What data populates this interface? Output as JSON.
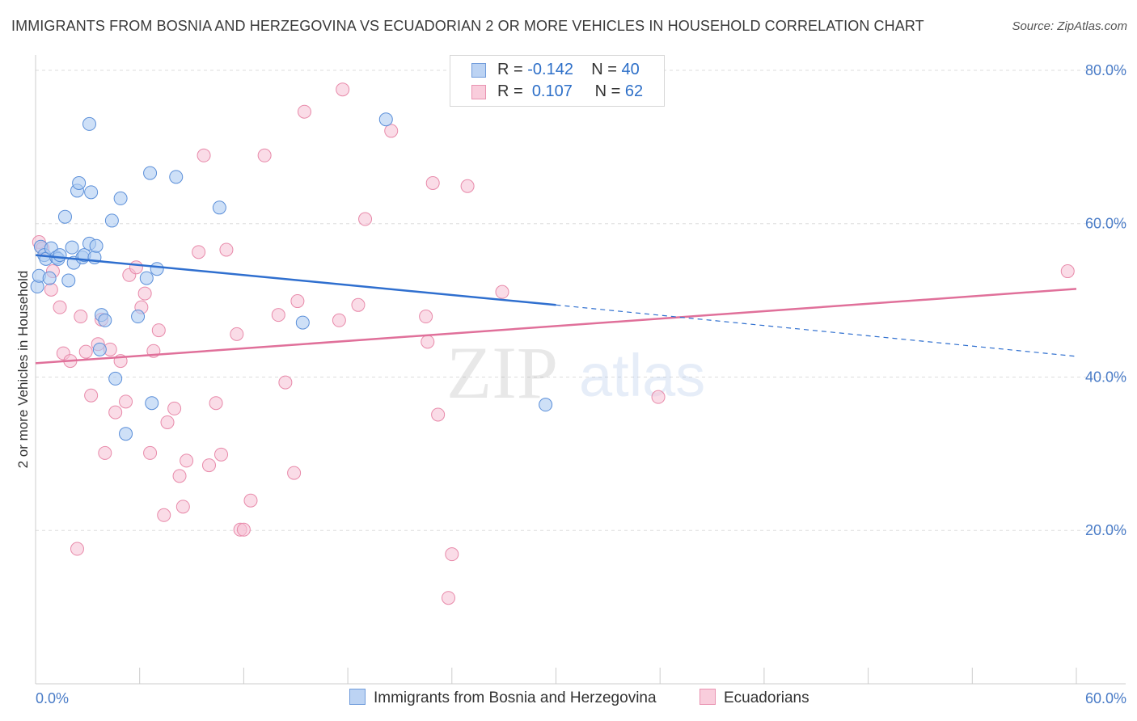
{
  "title": "IMMIGRANTS FROM BOSNIA AND HERZEGOVINA VS ECUADORIAN 2 OR MORE VEHICLES IN HOUSEHOLD CORRELATION CHART",
  "source": "Source: ZipAtlas.com",
  "watermark": {
    "zip": "ZIP",
    "atlas": "atlas"
  },
  "legend": {
    "series1": {
      "r_label": "R =",
      "r_value": "-0.142",
      "n_label": "N =",
      "n_value": "40"
    },
    "series2": {
      "r_label": "R =",
      "r_value": "0.107",
      "n_label": "N =",
      "n_value": "62"
    }
  },
  "bottom_legend": {
    "series1": "Immigrants from Bosnia and Herzegovina",
    "series2": "Ecuadorians"
  },
  "colors": {
    "series1_fill": "#aecbf2",
    "series1_stroke": "#5b8fd9",
    "series1_line": "#2f6fcf",
    "series2_fill": "#f6c0d3",
    "series2_stroke": "#e88aaa",
    "series2_line": "#e0709a",
    "axis_text": "#4a7cc7",
    "grid": "#dddddd"
  },
  "chart_data": {
    "type": "scatter",
    "title": "IMMIGRANTS FROM BOSNIA AND HERZEGOVINA VS ECUADORIAN 2 OR MORE VEHICLES IN HOUSEHOLD CORRELATION CHART",
    "xlabel": "",
    "ylabel": "2 or more Vehicles in Household",
    "xlim": [
      0,
      60
    ],
    "ylim": [
      0,
      82
    ],
    "x_tick_labels": [
      "0.0%",
      "60.0%"
    ],
    "y_ticks": [
      20,
      40,
      60,
      80
    ],
    "y_tick_labels": [
      "20.0%",
      "40.0%",
      "60.0%",
      "80.0%"
    ],
    "grid": true,
    "legend_position": "top-center",
    "series": [
      {
        "name": "Immigrants from Bosnia and Herzegovina",
        "points": [
          [
            0.1,
            51.8
          ],
          [
            0.2,
            53.2
          ],
          [
            0.3,
            57.0
          ],
          [
            0.5,
            55.9
          ],
          [
            0.6,
            55.4
          ],
          [
            0.8,
            52.9
          ],
          [
            0.9,
            56.8
          ],
          [
            1.2,
            55.6
          ],
          [
            1.3,
            55.4
          ],
          [
            1.4,
            55.9
          ],
          [
            1.7,
            60.9
          ],
          [
            1.9,
            52.6
          ],
          [
            2.1,
            56.9
          ],
          [
            2.2,
            54.9
          ],
          [
            2.4,
            64.3
          ],
          [
            2.5,
            65.3
          ],
          [
            2.7,
            55.6
          ],
          [
            2.8,
            55.9
          ],
          [
            3.1,
            57.4
          ],
          [
            3.1,
            73.0
          ],
          [
            3.2,
            64.1
          ],
          [
            3.4,
            55.6
          ],
          [
            3.5,
            57.1
          ],
          [
            3.7,
            43.6
          ],
          [
            3.8,
            48.1
          ],
          [
            4.0,
            47.4
          ],
          [
            4.4,
            60.4
          ],
          [
            4.6,
            39.8
          ],
          [
            4.9,
            63.3
          ],
          [
            5.2,
            32.6
          ],
          [
            5.9,
            47.9
          ],
          [
            6.4,
            52.9
          ],
          [
            6.6,
            66.6
          ],
          [
            6.7,
            36.6
          ],
          [
            7.0,
            54.1
          ],
          [
            8.1,
            66.1
          ],
          [
            10.6,
            62.1
          ],
          [
            15.4,
            47.1
          ],
          [
            20.2,
            73.6
          ],
          [
            29.4,
            36.4
          ]
        ]
      },
      {
        "name": "Ecuadorians",
        "points": [
          [
            0.2,
            57.6
          ],
          [
            0.4,
            56.8
          ],
          [
            0.9,
            51.4
          ],
          [
            1.0,
            53.8
          ],
          [
            1.4,
            49.1
          ],
          [
            1.6,
            43.1
          ],
          [
            2.0,
            42.1
          ],
          [
            2.4,
            17.6
          ],
          [
            2.6,
            47.9
          ],
          [
            2.9,
            43.3
          ],
          [
            3.2,
            37.6
          ],
          [
            3.6,
            44.3
          ],
          [
            3.8,
            47.5
          ],
          [
            4.0,
            30.1
          ],
          [
            4.3,
            43.6
          ],
          [
            4.6,
            35.4
          ],
          [
            4.9,
            42.1
          ],
          [
            5.2,
            36.8
          ],
          [
            5.4,
            53.3
          ],
          [
            5.8,
            54.3
          ],
          [
            6.1,
            49.1
          ],
          [
            6.3,
            50.9
          ],
          [
            6.6,
            30.1
          ],
          [
            6.8,
            43.4
          ],
          [
            7.1,
            46.1
          ],
          [
            7.4,
            22.0
          ],
          [
            7.6,
            34.1
          ],
          [
            8.0,
            35.9
          ],
          [
            8.3,
            27.1
          ],
          [
            8.5,
            23.1
          ],
          [
            8.7,
            29.1
          ],
          [
            9.4,
            56.3
          ],
          [
            9.7,
            68.9
          ],
          [
            10.0,
            28.5
          ],
          [
            10.4,
            36.6
          ],
          [
            10.7,
            29.9
          ],
          [
            11.0,
            56.6
          ],
          [
            11.6,
            45.6
          ],
          [
            11.8,
            20.1
          ],
          [
            12.0,
            20.1
          ],
          [
            12.4,
            23.9
          ],
          [
            13.2,
            68.9
          ],
          [
            14.0,
            48.1
          ],
          [
            14.4,
            39.3
          ],
          [
            14.9,
            27.5
          ],
          [
            15.1,
            49.9
          ],
          [
            15.5,
            74.6
          ],
          [
            17.5,
            47.4
          ],
          [
            17.7,
            77.5
          ],
          [
            18.6,
            49.4
          ],
          [
            19.0,
            60.6
          ],
          [
            20.5,
            72.1
          ],
          [
            22.5,
            47.9
          ],
          [
            22.6,
            44.6
          ],
          [
            22.9,
            65.3
          ],
          [
            23.2,
            35.1
          ],
          [
            24.0,
            16.9
          ],
          [
            23.8,
            11.2
          ],
          [
            24.9,
            64.9
          ],
          [
            26.9,
            51.1
          ],
          [
            35.9,
            37.4
          ],
          [
            59.5,
            53.8
          ]
        ]
      }
    ],
    "trend_lines": [
      {
        "series": "Immigrants from Bosnia and Herzegovina",
        "solid": [
          [
            0,
            55.9
          ],
          [
            30,
            49.4
          ]
        ],
        "dashed": [
          [
            30,
            49.4
          ],
          [
            60,
            42.7
          ]
        ]
      },
      {
        "series": "Ecuadorians",
        "solid": [
          [
            0,
            41.8
          ],
          [
            60,
            51.5
          ]
        ]
      }
    ]
  }
}
